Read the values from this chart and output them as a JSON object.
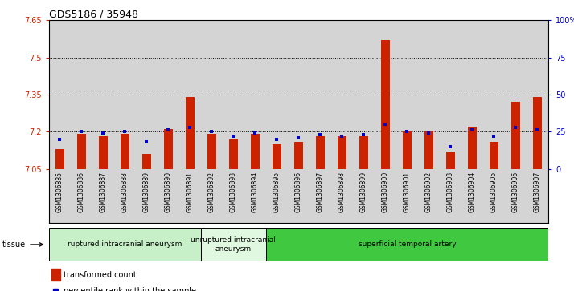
{
  "title": "GDS5186 / 35948",
  "samples": [
    "GSM1306885",
    "GSM1306886",
    "GSM1306887",
    "GSM1306888",
    "GSM1306889",
    "GSM1306890",
    "GSM1306891",
    "GSM1306892",
    "GSM1306893",
    "GSM1306894",
    "GSM1306895",
    "GSM1306896",
    "GSM1306897",
    "GSM1306898",
    "GSM1306899",
    "GSM1306900",
    "GSM1306901",
    "GSM1306902",
    "GSM1306903",
    "GSM1306904",
    "GSM1306905",
    "GSM1306906",
    "GSM1306907"
  ],
  "red_values": [
    7.13,
    7.19,
    7.18,
    7.19,
    7.11,
    7.21,
    7.34,
    7.19,
    7.17,
    7.19,
    7.15,
    7.16,
    7.18,
    7.18,
    7.18,
    7.57,
    7.2,
    7.2,
    7.12,
    7.22,
    7.16,
    7.32,
    7.34
  ],
  "blue_percentiles": [
    20,
    25,
    24,
    25,
    18,
    26,
    28,
    25,
    22,
    24,
    20,
    21,
    23,
    22,
    23,
    30,
    25,
    24,
    15,
    26,
    22,
    28,
    26
  ],
  "ylim_left": [
    7.05,
    7.65
  ],
  "ylim_right": [
    0,
    100
  ],
  "yticks_left": [
    7.05,
    7.2,
    7.35,
    7.5,
    7.65
  ],
  "ytick_labels_left": [
    "7.05",
    "7.2",
    "7.35",
    "7.5",
    "7.65"
  ],
  "yticks_right": [
    0,
    25,
    50,
    75,
    100
  ],
  "ytick_labels_right": [
    "0",
    "25",
    "50",
    "75",
    "100%"
  ],
  "hlines": [
    7.2,
    7.35,
    7.5
  ],
  "groups": [
    {
      "label": "ruptured intracranial aneurysm",
      "start": 0,
      "end": 7,
      "color": "#c8f0c8"
    },
    {
      "label": "unruptured intracranial\naneurysm",
      "start": 7,
      "end": 10,
      "color": "#e0f8e0"
    },
    {
      "label": "superficial temporal artery",
      "start": 10,
      "end": 23,
      "color": "#40c840"
    }
  ],
  "bar_color": "#cc2200",
  "dot_color": "#0000cc",
  "col_bg_color": "#d4d4d4",
  "plot_bg_color": "#ffffff",
  "left_tick_color": "#cc2200",
  "right_tick_color": "#0000cc",
  "legend_bar_label": "transformed count",
  "legend_dot_label": "percentile rank within the sample",
  "tissue_label": "tissue"
}
